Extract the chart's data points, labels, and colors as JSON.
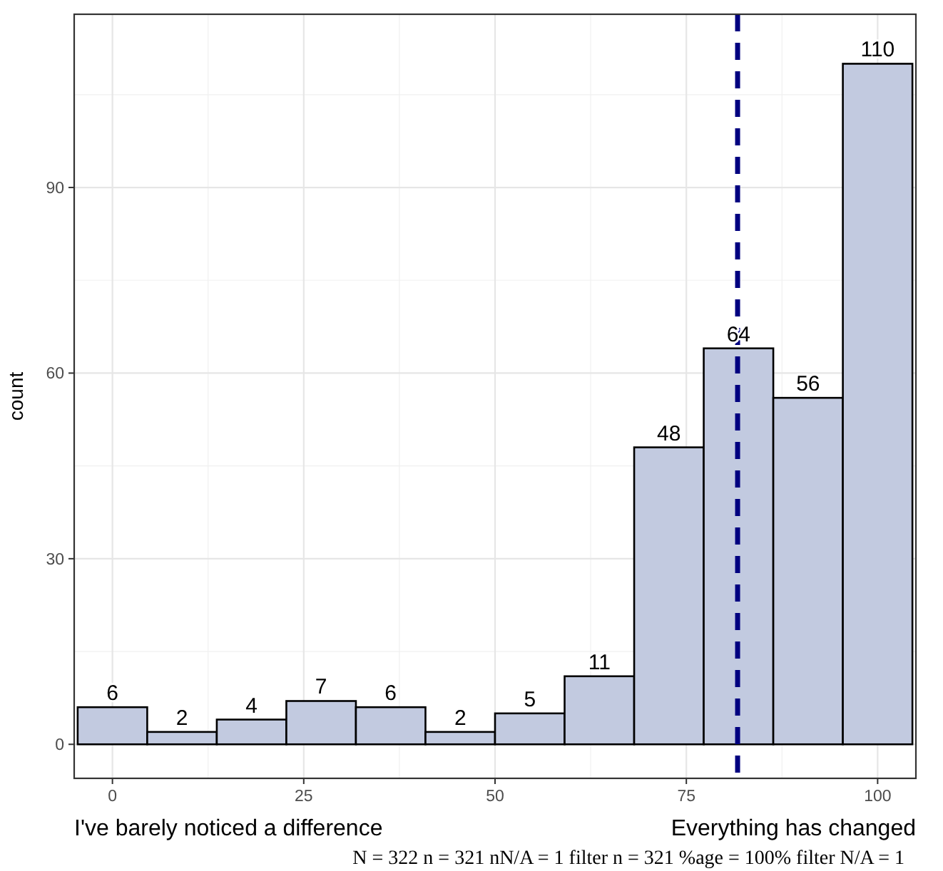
{
  "chart_data": {
    "type": "histogram",
    "ylabel": "count",
    "bins": [
      -4.545,
      4.545,
      13.636,
      22.727,
      31.818,
      40.909,
      50,
      59.091,
      68.182,
      77.273,
      86.364,
      95.455,
      104.545
    ],
    "values": [
      6,
      2,
      4,
      7,
      6,
      2,
      5,
      11,
      48,
      64,
      56,
      110
    ],
    "color": "#c2cae0",
    "data_labels": true,
    "xlim": [
      -5,
      105
    ],
    "xticks": [
      0,
      25,
      50,
      75,
      100
    ],
    "ylim": [
      -5.5,
      118
    ],
    "yticks": [
      0,
      30,
      60,
      90
    ],
    "grid": true,
    "ref_lines": [
      {
        "axis": "x",
        "value": 81.7,
        "color": "#000080",
        "line_style": "dashed"
      }
    ],
    "annotations": [
      "I've barely noticed a difference",
      "Everything has changed",
      "N = 322 n = 321  nN/A = 1  filter n = 321  %age = 100%  filter N/A = 1"
    ]
  }
}
